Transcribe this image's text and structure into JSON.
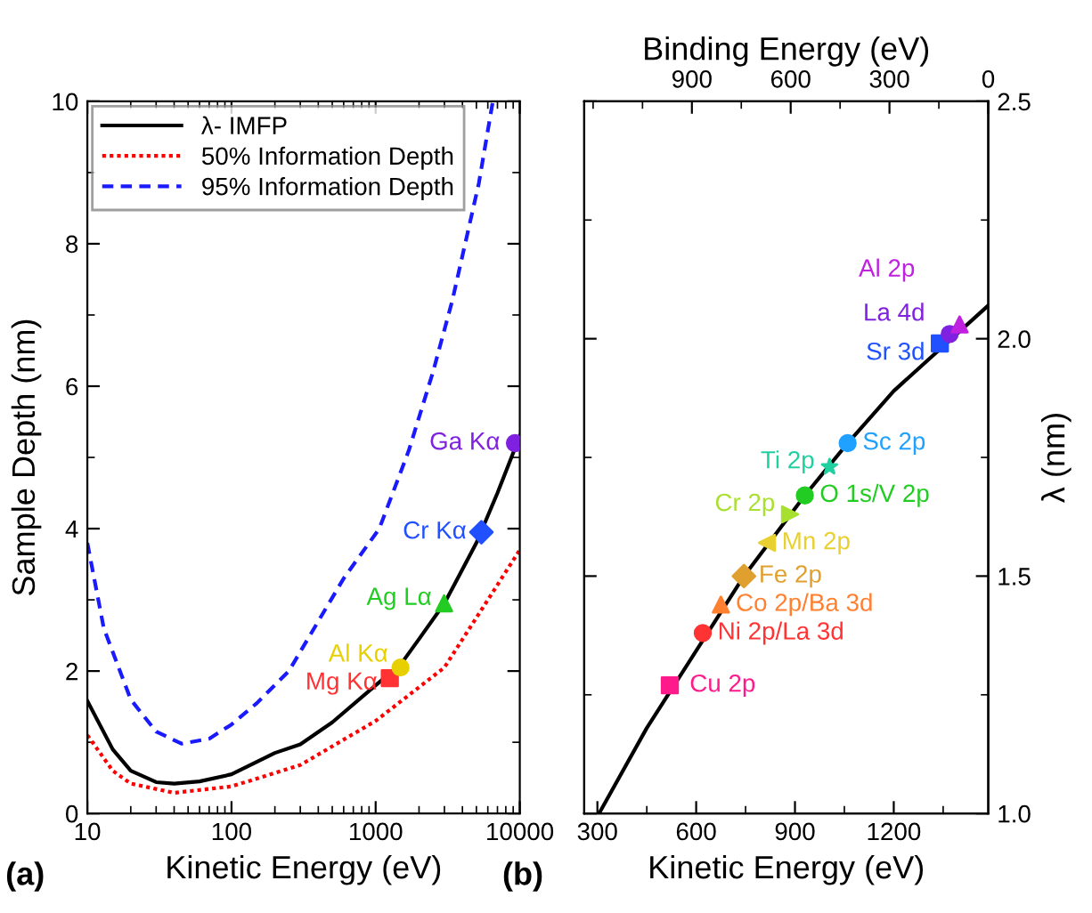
{
  "chart_data": [
    {
      "type": "line",
      "xlabel": "Kinetic Energy (eV)",
      "ylabel": "Sample Depth (nm)",
      "log": "x",
      "xlim": [
        10,
        10000
      ],
      "ylim": [
        0,
        10
      ],
      "xticks": [
        10,
        100,
        1000,
        10000
      ],
      "yticks": [
        0,
        2,
        4,
        6,
        8,
        10
      ],
      "legend": "top left",
      "annotations": [
        "(a)"
      ],
      "series": [
        {
          "name": "λ- IMFP",
          "color": "#000000",
          "line_style": "solid",
          "x": [
            10,
            15,
            20,
            30,
            40,
            60,
            100,
            200,
            300,
            500,
            1000,
            1500,
            2000,
            3000,
            5000,
            7000,
            10000
          ],
          "values": [
            1.58,
            0.9,
            0.6,
            0.44,
            0.42,
            0.45,
            0.55,
            0.85,
            0.97,
            1.28,
            1.8,
            2.1,
            2.45,
            2.95,
            3.8,
            4.5,
            5.3
          ]
        },
        {
          "name": "50% Information Depth",
          "color": "#ff0000",
          "line_style": "dotted",
          "x": [
            10,
            15,
            20,
            40,
            100,
            300,
            1000,
            3000,
            10000
          ],
          "values": [
            1.1,
            0.6,
            0.42,
            0.29,
            0.38,
            0.68,
            1.3,
            2.05,
            3.7
          ]
        },
        {
          "name": "95% Information Depth",
          "color": "#1a1aff",
          "line_style": "dashed",
          "x": [
            10,
            13,
            20,
            30,
            45,
            70,
            100,
            150,
            250,
            400,
            600,
            1060,
            1700,
            2500,
            3400,
            5200,
            6500
          ],
          "values": [
            3.8,
            2.6,
            1.6,
            1.15,
            0.98,
            1.05,
            1.25,
            1.55,
            2.0,
            2.7,
            3.3,
            4.0,
            5.1,
            6.2,
            7.2,
            8.85,
            10.0
          ]
        },
        {
          "name": "Mg Kα",
          "type": "scatter",
          "color": "#ff3333",
          "marker": "square",
          "x": [
            1254
          ],
          "values": [
            1.9
          ]
        },
        {
          "name": "Al Kα",
          "type": "scatter",
          "color": "#e8d000",
          "marker": "circle",
          "x": [
            1487
          ],
          "values": [
            2.05
          ]
        },
        {
          "name": "Ag Lα",
          "type": "scatter",
          "color": "#22cc22",
          "marker": "triangle",
          "x": [
            2984
          ],
          "values": [
            2.95
          ]
        },
        {
          "name": "Cr Kα",
          "type": "scatter",
          "color": "#2050ff",
          "marker": "diamond",
          "x": [
            5415
          ],
          "values": [
            3.95
          ]
        },
        {
          "name": "Ga Kα",
          "type": "scatter",
          "color": "#8020e0",
          "marker": "circle",
          "x": [
            9252
          ],
          "values": [
            5.2
          ]
        }
      ]
    },
    {
      "type": "line",
      "xlabel": "Kinetic Energy (eV)",
      "ylabel": "λ (nm)",
      "x2label": "Binding Energy (eV)",
      "xlim": [
        260,
        1487
      ],
      "ylim": [
        1.0,
        2.5
      ],
      "xticks": [
        300,
        600,
        900,
        1200
      ],
      "yticks": [
        {
          "value": 1,
          "label": "1.0"
        },
        1.5,
        {
          "value": 2,
          "label": "2.0"
        },
        2.5
      ],
      "x2lim": [
        1227,
        0
      ],
      "x2ticks": [
        900,
        600,
        300,
        0
      ],
      "annotations": [
        "(b)"
      ],
      "series": [
        {
          "color": "#000000",
          "line_style": "solid",
          "x": [
            305,
            450,
            745,
            930,
            1060,
            1200,
            1487
          ],
          "values": [
            1.0,
            1.18,
            1.5,
            1.67,
            1.78,
            1.89,
            2.07
          ]
        },
        {
          "name": "Cu 2p",
          "type": "scatter",
          "color": "#ff1a8c",
          "marker": "square",
          "x": [
            520
          ],
          "values": [
            1.27
          ]
        },
        {
          "name": "Ni 2p/La 3d",
          "type": "scatter",
          "color": "#ff3333",
          "marker": "circle",
          "x": [
            620
          ],
          "values": [
            1.38
          ]
        },
        {
          "name": "Co 2p/Ba 3d",
          "type": "scatter",
          "color": "#ff8030",
          "marker": "triangle",
          "x": [
            675
          ],
          "values": [
            1.44
          ]
        },
        {
          "name": "Fe 2p",
          "type": "scatter",
          "color": "#e0a030",
          "marker": "diamond",
          "x": [
            745
          ],
          "values": [
            1.5
          ]
        },
        {
          "name": "Mn 2p",
          "type": "scatter",
          "color": "#e8d030",
          "marker": "triangle_left",
          "x": [
            815
          ],
          "values": [
            1.57
          ]
        },
        {
          "name": "Cr 2p",
          "type": "scatter",
          "color": "#a8e030",
          "marker": "triangle_right",
          "x": [
            885
          ],
          "values": [
            1.63
          ]
        },
        {
          "name": "O 1s/V 2p",
          "type": "scatter",
          "color": "#22cc22",
          "marker": "circle",
          "x": [
            930
          ],
          "values": [
            1.67
          ]
        },
        {
          "name": "Ti 2p",
          "type": "scatter",
          "color": "#20d0a0",
          "marker": "star",
          "x": [
            1005
          ],
          "values": [
            1.73
          ]
        },
        {
          "name": "Sc 2p",
          "type": "scatter",
          "color": "#20a0ff",
          "marker": "circle",
          "x": [
            1060
          ],
          "values": [
            1.78
          ]
        },
        {
          "name": "Sr 3d",
          "type": "scatter",
          "color": "#2050ff",
          "marker": "square",
          "x": [
            1340
          ],
          "values": [
            1.99
          ]
        },
        {
          "name": "La 4d",
          "type": "scatter",
          "color": "#8020e0",
          "marker": "circle",
          "x": [
            1370
          ],
          "values": [
            2.01
          ]
        },
        {
          "name": "Al 2p",
          "type": "scatter",
          "color": "#c020e0",
          "marker": "triangle",
          "x": [
            1400
          ],
          "values": [
            2.03
          ]
        }
      ]
    }
  ]
}
